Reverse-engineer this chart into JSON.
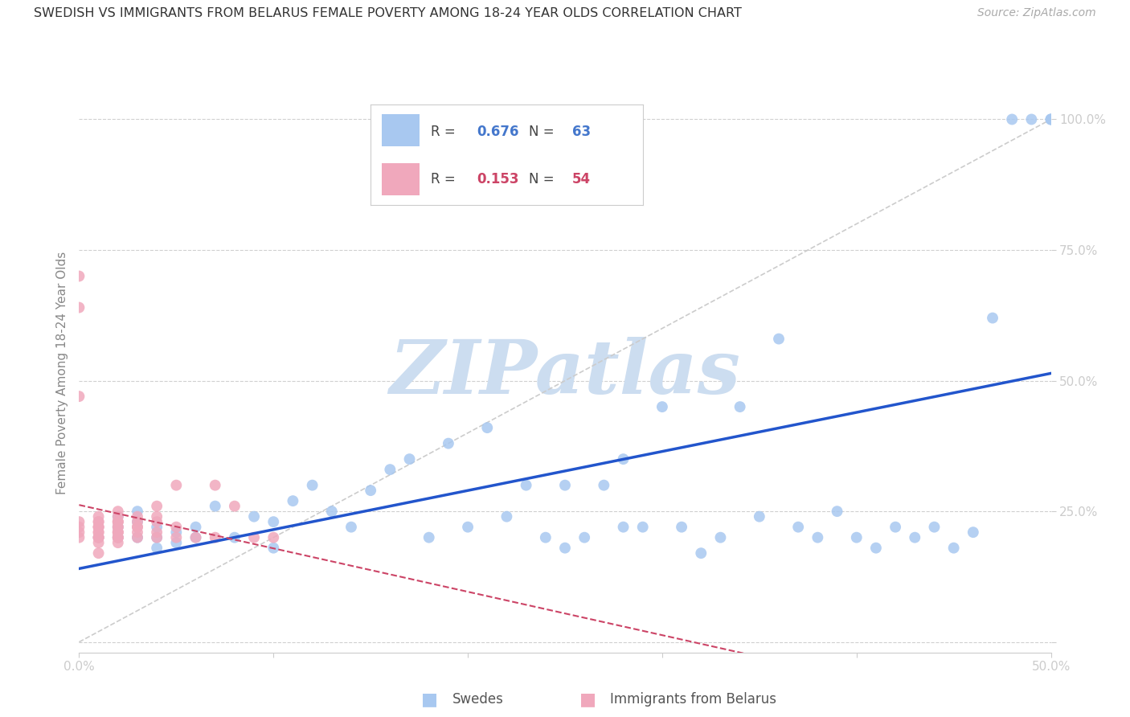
{
  "title": "SWEDISH VS IMMIGRANTS FROM BELARUS FEMALE POVERTY AMONG 18-24 YEAR OLDS CORRELATION CHART",
  "source": "Source: ZipAtlas.com",
  "ylabel": "Female Poverty Among 18-24 Year Olds",
  "xlim": [
    0.0,
    0.5
  ],
  "ylim": [
    -0.02,
    1.05
  ],
  "x_ticks": [
    0.0,
    0.1,
    0.2,
    0.3,
    0.4,
    0.5
  ],
  "x_tick_labels": [
    "0.0%",
    "",
    "",
    "",
    "",
    "50.0%"
  ],
  "y_ticks": [
    0.0,
    0.25,
    0.5,
    0.75,
    1.0
  ],
  "y_tick_labels": [
    "",
    "25.0%",
    "50.0%",
    "75.0%",
    "100.0%"
  ],
  "background_color": "#ffffff",
  "grid_color": "#d0d0d0",
  "watermark_text": "ZIPatlas",
  "watermark_color": "#ccddf0",
  "blue_color": "#a8c8f0",
  "pink_color": "#f0a8bc",
  "blue_line_color": "#2255cc",
  "pink_line_color": "#cc4466",
  "diag_line_color": "#cccccc",
  "legend_R_blue": "0.676",
  "legend_N_blue": "63",
  "legend_R_pink": "0.153",
  "legend_N_pink": "54",
  "legend_label_blue": "Swedes",
  "legend_label_pink": "Immigrants from Belarus",
  "swedes_x": [
    0.01,
    0.02,
    0.02,
    0.02,
    0.03,
    0.03,
    0.03,
    0.04,
    0.04,
    0.04,
    0.05,
    0.05,
    0.06,
    0.06,
    0.07,
    0.08,
    0.09,
    0.1,
    0.1,
    0.11,
    0.12,
    0.13,
    0.14,
    0.15,
    0.16,
    0.17,
    0.18,
    0.19,
    0.2,
    0.21,
    0.22,
    0.23,
    0.24,
    0.25,
    0.25,
    0.26,
    0.27,
    0.28,
    0.28,
    0.29,
    0.3,
    0.31,
    0.32,
    0.33,
    0.34,
    0.35,
    0.36,
    0.37,
    0.38,
    0.39,
    0.4,
    0.41,
    0.42,
    0.43,
    0.44,
    0.45,
    0.46,
    0.47,
    0.48,
    0.49,
    0.5,
    0.5,
    0.5
  ],
  "swedes_y": [
    0.2,
    0.22,
    0.24,
    0.2,
    0.2,
    0.23,
    0.25,
    0.18,
    0.2,
    0.22,
    0.19,
    0.21,
    0.2,
    0.22,
    0.26,
    0.2,
    0.24,
    0.18,
    0.23,
    0.27,
    0.3,
    0.25,
    0.22,
    0.29,
    0.33,
    0.35,
    0.2,
    0.38,
    0.22,
    0.41,
    0.24,
    0.3,
    0.2,
    0.18,
    0.3,
    0.2,
    0.3,
    0.22,
    0.35,
    0.22,
    0.45,
    0.22,
    0.17,
    0.2,
    0.45,
    0.24,
    0.58,
    0.22,
    0.2,
    0.25,
    0.2,
    0.18,
    0.22,
    0.2,
    0.22,
    0.18,
    0.21,
    0.62,
    1.0,
    1.0,
    1.0,
    1.0,
    1.0
  ],
  "belarus_x": [
    0.0,
    0.0,
    0.0,
    0.0,
    0.0,
    0.0,
    0.0,
    0.01,
    0.01,
    0.01,
    0.01,
    0.01,
    0.01,
    0.01,
    0.01,
    0.01,
    0.01,
    0.01,
    0.01,
    0.01,
    0.02,
    0.02,
    0.02,
    0.02,
    0.02,
    0.02,
    0.02,
    0.02,
    0.02,
    0.02,
    0.02,
    0.02,
    0.02,
    0.02,
    0.03,
    0.03,
    0.03,
    0.03,
    0.03,
    0.03,
    0.04,
    0.04,
    0.04,
    0.04,
    0.04,
    0.05,
    0.05,
    0.05,
    0.06,
    0.07,
    0.07,
    0.08,
    0.09,
    0.1
  ],
  "belarus_y": [
    0.7,
    0.64,
    0.47,
    0.22,
    0.21,
    0.23,
    0.2,
    0.23,
    0.22,
    0.24,
    0.2,
    0.23,
    0.22,
    0.2,
    0.21,
    0.2,
    0.22,
    0.21,
    0.19,
    0.17,
    0.23,
    0.22,
    0.21,
    0.2,
    0.22,
    0.21,
    0.2,
    0.23,
    0.21,
    0.19,
    0.24,
    0.2,
    0.25,
    0.23,
    0.22,
    0.23,
    0.21,
    0.24,
    0.2,
    0.22,
    0.23,
    0.21,
    0.2,
    0.26,
    0.24,
    0.3,
    0.2,
    0.22,
    0.2,
    0.3,
    0.2,
    0.26,
    0.2,
    0.2
  ]
}
